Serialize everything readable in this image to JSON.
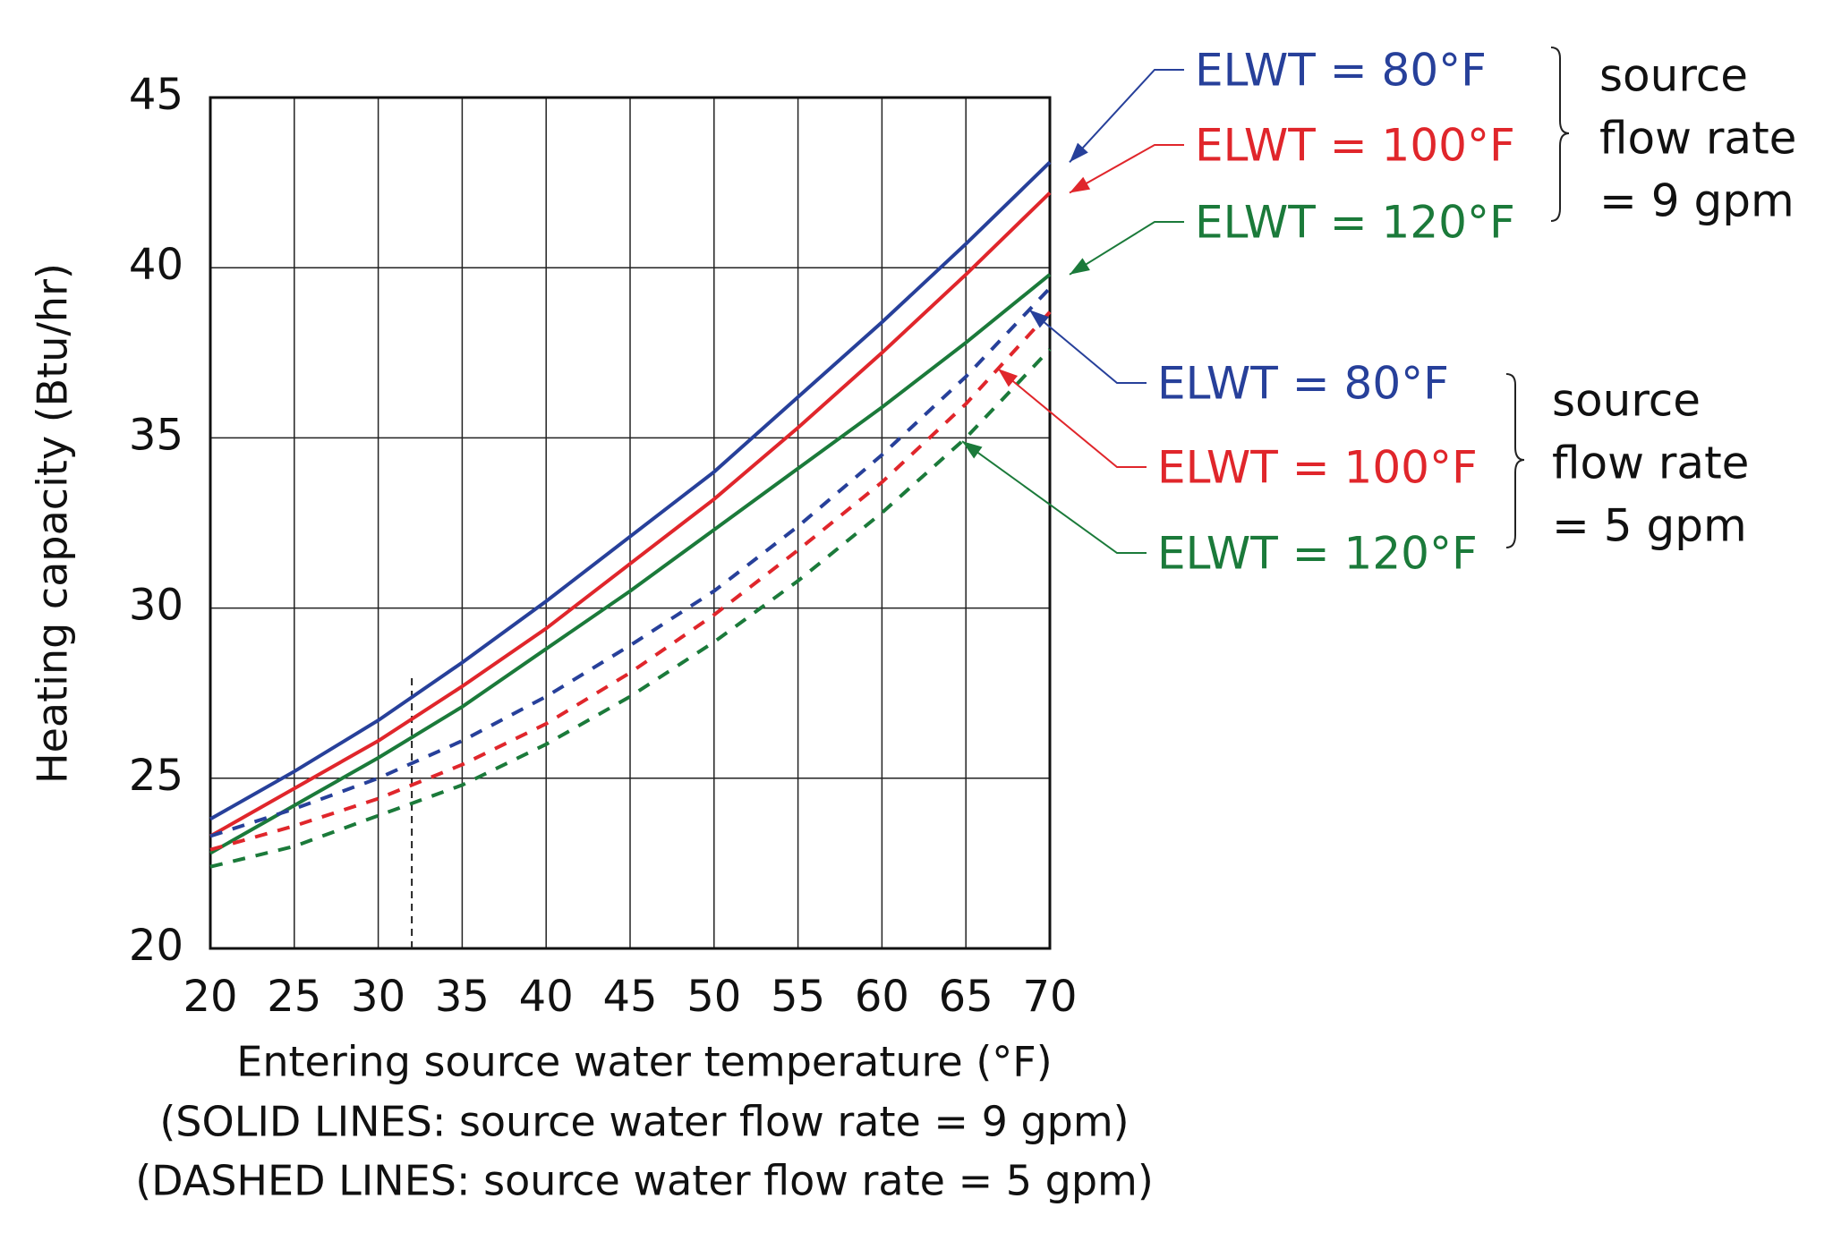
{
  "chart_data": {
    "type": "line",
    "ylabel": "Heating capacity (Btu/hr)",
    "xlabel": [
      "Entering source water temperature (°F)",
      "(SOLID LINES: source water flow rate = 9 gpm)",
      "(DASHED LINES: source water flow rate = 5 gpm)"
    ],
    "x": [
      20,
      25,
      30,
      35,
      40,
      45,
      50,
      55,
      60,
      65,
      70
    ],
    "xlim": [
      20,
      70
    ],
    "xticks": [
      20,
      25,
      30,
      35,
      40,
      45,
      50,
      55,
      60,
      65,
      70
    ],
    "ylim": [
      20,
      45
    ],
    "yticks": [
      20,
      25,
      30,
      35,
      40,
      45
    ],
    "grid": true,
    "series": [
      {
        "name": "ELWT = 80°F",
        "color": "#27409a",
        "dashed": false,
        "values": [
          23.8,
          25.2,
          26.7,
          28.4,
          30.2,
          32.1,
          34.0,
          36.2,
          38.4,
          40.7,
          43.1
        ]
      },
      {
        "name": "ELWT = 100°F",
        "color": "#e0262b",
        "dashed": false,
        "values": [
          23.3,
          24.7,
          26.1,
          27.7,
          29.4,
          31.3,
          33.2,
          35.3,
          37.5,
          39.8,
          42.2
        ]
      },
      {
        "name": "ELWT = 120°F",
        "color": "#1b7a3a",
        "dashed": false,
        "values": [
          22.8,
          24.2,
          25.6,
          27.1,
          28.8,
          30.5,
          32.3,
          34.1,
          35.9,
          37.8,
          39.8
        ]
      },
      {
        "name": "ELWT = 80°F",
        "color": "#27409a",
        "dashed": true,
        "values": [
          23.3,
          24.1,
          25.0,
          26.1,
          27.4,
          28.9,
          30.5,
          32.4,
          34.5,
          36.8,
          39.4
        ]
      },
      {
        "name": "ELWT = 100°F",
        "color": "#e0262b",
        "dashed": true,
        "values": [
          22.9,
          23.6,
          24.4,
          25.4,
          26.6,
          28.1,
          29.8,
          31.7,
          33.7,
          36.0,
          38.7
        ]
      },
      {
        "name": "ELWT = 120°F",
        "color": "#1b7a3a",
        "dashed": true,
        "values": [
          22.4,
          23.0,
          23.9,
          24.8,
          26.0,
          27.4,
          29.0,
          30.8,
          32.8,
          35.0,
          37.6
        ]
      }
    ],
    "groups": [
      {
        "lines": [
          "source",
          "flow rate",
          "= 9 gpm"
        ]
      },
      {
        "lines": [
          "source",
          "flow rate",
          "= 5 gpm"
        ]
      }
    ],
    "reference_line": {
      "x": 32,
      "y": [
        20,
        28
      ]
    }
  }
}
